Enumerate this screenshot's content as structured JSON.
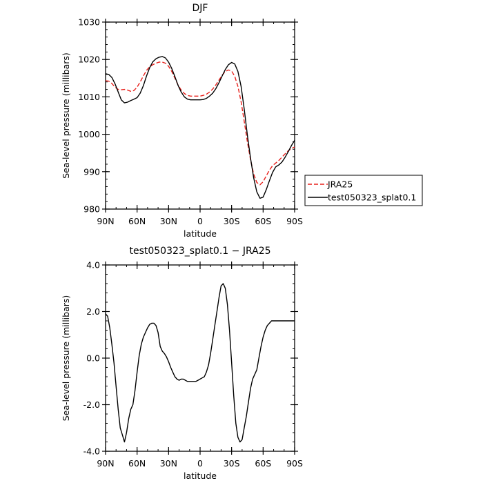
{
  "chart_data": [
    {
      "type": "line",
      "title": "DJF",
      "xlabel": "latitude",
      "ylabel": "Sea-level pressure (millibars)",
      "xlim": [
        90,
        -90
      ],
      "ylim": [
        980,
        1030
      ],
      "x_tick_values": [
        90,
        60,
        30,
        0,
        -30,
        -60,
        -90
      ],
      "x_tick_labels": [
        "90N",
        "60N",
        "30N",
        "0",
        "30S",
        "60S",
        "90S"
      ],
      "y_tick_values": [
        980,
        990,
        1000,
        1010,
        1020,
        1030
      ],
      "y_tick_labels": [
        "980",
        "990",
        "1000",
        "1010",
        "1020",
        "1030"
      ],
      "grid": false,
      "legend_position": "outside-right-bottom",
      "x": [
        90,
        87,
        84,
        81,
        78,
        75,
        72,
        69,
        66,
        63,
        60,
        57,
        54,
        51,
        48,
        45,
        42,
        39,
        36,
        33,
        30,
        27,
        24,
        21,
        18,
        15,
        12,
        9,
        6,
        3,
        0,
        -3,
        -6,
        -9,
        -12,
        -15,
        -18,
        -21,
        -24,
        -27,
        -30,
        -33,
        -36,
        -39,
        -42,
        -45,
        -48,
        -51,
        -54,
        -57,
        -60,
        -63,
        -66,
        -69,
        -72,
        -75,
        -78,
        -81,
        -84,
        -87,
        -90
      ],
      "series": [
        {
          "name": "JRA25",
          "color": "#e8201b",
          "dash": "dashed",
          "values": [
            1014.3,
            1014.2,
            1013.6,
            1012.6,
            1012.0,
            1011.9,
            1012.0,
            1011.8,
            1011.5,
            1011.7,
            1012.6,
            1014.0,
            1015.6,
            1017.1,
            1018.0,
            1018.6,
            1019.0,
            1019.3,
            1019.3,
            1019.0,
            1018.2,
            1016.8,
            1015.0,
            1013.2,
            1011.8,
            1010.9,
            1010.4,
            1010.2,
            1010.2,
            1010.2,
            1010.2,
            1010.4,
            1010.7,
            1011.3,
            1012.1,
            1013.2,
            1014.5,
            1015.8,
            1016.8,
            1017.2,
            1016.9,
            1015.5,
            1012.8,
            1008.7,
            1003.5,
            998.0,
            993.2,
            989.4,
            987.1,
            986.5,
            987.3,
            988.9,
            990.4,
            991.6,
            992.3,
            993.0,
            993.9,
            994.8,
            995.6,
            996.2,
            996.6
          ]
        },
        {
          "name": "test050323_splat0.1",
          "color": "#000000",
          "dash": "solid",
          "values": [
            1016.2,
            1016.0,
            1015.2,
            1013.5,
            1011.3,
            1009.2,
            1008.4,
            1008.6,
            1009.0,
            1009.4,
            1009.8,
            1011.0,
            1013.0,
            1015.6,
            1017.8,
            1019.4,
            1020.2,
            1020.6,
            1020.8,
            1020.4,
            1019.3,
            1017.6,
            1015.4,
            1013.1,
            1011.3,
            1010.0,
            1009.4,
            1009.2,
            1009.2,
            1009.2,
            1009.2,
            1009.3,
            1009.6,
            1010.2,
            1011.0,
            1012.2,
            1013.8,
            1015.6,
            1017.3,
            1018.6,
            1019.2,
            1018.8,
            1016.8,
            1012.8,
            1006.8,
            999.8,
            993.6,
            988.4,
            984.6,
            982.9,
            983.2,
            985.2,
            987.6,
            989.8,
            991.3,
            991.8,
            992.6,
            993.9,
            995.4,
            997.0,
            998.4
          ]
        }
      ]
    },
    {
      "type": "line",
      "title": "test050323_splat0.1 − JRA25",
      "xlabel": "latitude",
      "ylabel": "Sea-level pressure (millibars)",
      "xlim": [
        90,
        -90
      ],
      "ylim": [
        -4.0,
        4.0
      ],
      "x_tick_values": [
        90,
        60,
        30,
        0,
        -30,
        -60,
        -90
      ],
      "x_tick_labels": [
        "90N",
        "60N",
        "30N",
        "0",
        "30S",
        "60S",
        "90S"
      ],
      "y_tick_values": [
        -4.0,
        -2.0,
        0.0,
        2.0,
        4.0
      ],
      "y_tick_labels": [
        "-4.0",
        "-2.0",
        "0.0",
        "2.0",
        "4.0"
      ],
      "grid": false,
      "x": [
        90,
        88,
        86,
        84,
        82,
        80,
        78,
        76,
        74,
        72,
        70,
        68,
        66,
        64,
        62,
        60,
        58,
        56,
        54,
        52,
        50,
        48,
        46,
        44,
        42,
        40,
        38,
        36,
        34,
        32,
        30,
        28,
        26,
        24,
        22,
        20,
        18,
        16,
        14,
        12,
        10,
        8,
        6,
        4,
        2,
        0,
        -2,
        -4,
        -6,
        -8,
        -10,
        -12,
        -14,
        -16,
        -18,
        -20,
        -22,
        -24,
        -26,
        -28,
        -30,
        -32,
        -34,
        -36,
        -38,
        -40,
        -42,
        -44,
        -46,
        -48,
        -50,
        -52,
        -54,
        -56,
        -58,
        -60,
        -62,
        -64,
        -66,
        -68,
        -70,
        -72,
        -74,
        -76,
        -78,
        -80,
        -82,
        -84,
        -86,
        -88,
        -90
      ],
      "series": [
        {
          "name": "",
          "color": "#000000",
          "dash": "solid",
          "values": [
            1.9,
            1.8,
            1.3,
            0.6,
            -0.2,
            -1.2,
            -2.2,
            -3.0,
            -3.3,
            -3.6,
            -3.2,
            -2.6,
            -2.2,
            -2.0,
            -1.4,
            -0.6,
            0.1,
            0.6,
            0.9,
            1.1,
            1.3,
            1.45,
            1.5,
            1.5,
            1.4,
            1.1,
            0.5,
            0.3,
            0.2,
            0.05,
            -0.15,
            -0.4,
            -0.6,
            -0.8,
            -0.9,
            -0.95,
            -0.9,
            -0.9,
            -0.95,
            -1.0,
            -1.0,
            -1.0,
            -1.0,
            -1.0,
            -0.95,
            -0.9,
            -0.85,
            -0.8,
            -0.6,
            -0.3,
            0.2,
            0.8,
            1.4,
            2.0,
            2.6,
            3.1,
            3.2,
            3.0,
            2.3,
            1.2,
            -0.2,
            -1.6,
            -2.8,
            -3.4,
            -3.6,
            -3.5,
            -3.0,
            -2.5,
            -1.9,
            -1.3,
            -0.9,
            -0.7,
            -0.5,
            0.0,
            0.5,
            0.9,
            1.2,
            1.4,
            1.5,
            1.6,
            1.6,
            1.6,
            1.6,
            1.6,
            1.6,
            1.6,
            1.6,
            1.6,
            1.6,
            1.6,
            1.6
          ]
        }
      ]
    }
  ]
}
